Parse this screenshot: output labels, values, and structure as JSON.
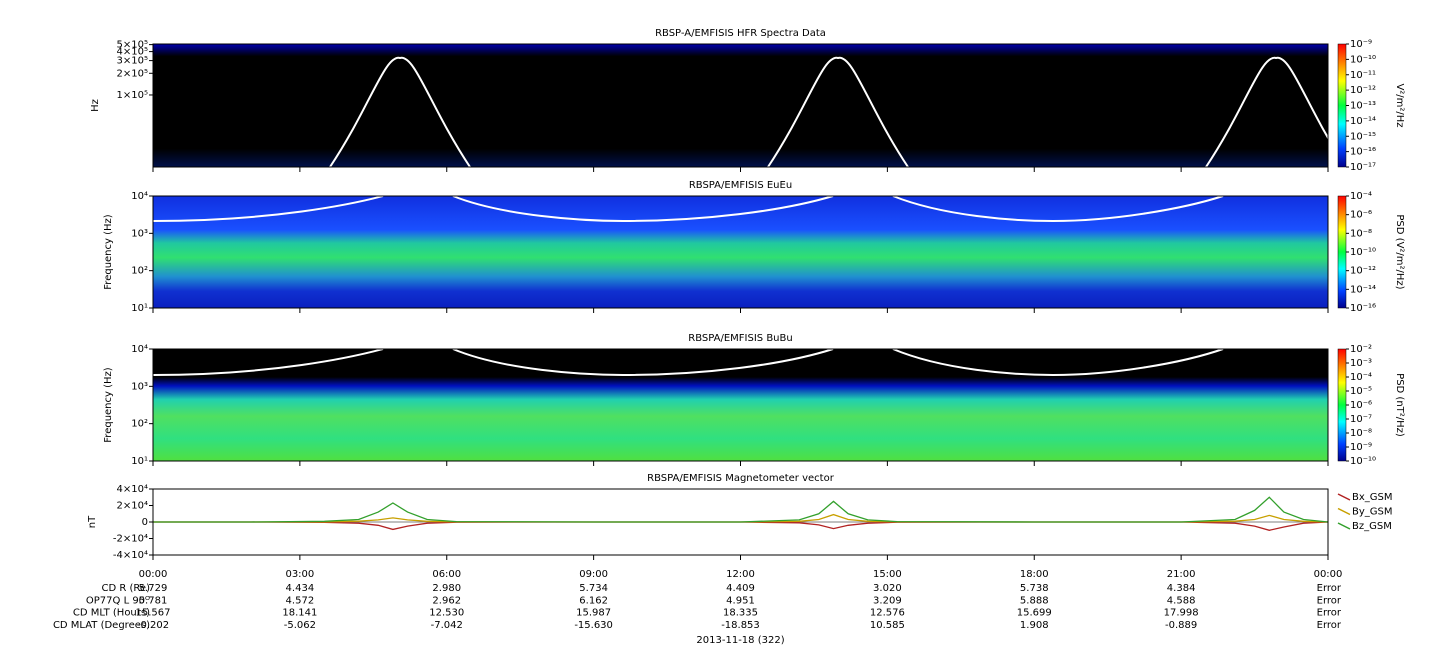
{
  "chart_data": [
    {
      "type": "spectrogram",
      "title": "RBSP-A/EMFISIS  HFR Spectra Data",
      "y_label": "Hz",
      "log_y": true,
      "ylim": [
        10000,
        510000
      ],
      "yticks": [
        {
          "value": 100000,
          "label": "1×10⁵"
        },
        {
          "value": 200000,
          "label": "2×10⁵"
        },
        {
          "value": 300000,
          "label": "3×10⁵"
        },
        {
          "value": 400000,
          "label": "4×10⁵"
        },
        {
          "value": 500000,
          "label": "5×10⁵"
        }
      ],
      "colorbar": {
        "label": "V²/m²/Hz",
        "log": true,
        "lim": [
          1e-17,
          1e-09
        ],
        "ticks": [
          {
            "value": 1e-09,
            "label": "10⁻⁹"
          },
          {
            "value": 1e-10,
            "label": "10⁻¹⁰"
          },
          {
            "value": 1e-11,
            "label": "10⁻¹¹"
          },
          {
            "value": 1e-12,
            "label": "10⁻¹²"
          },
          {
            "value": 1e-13,
            "label": "10⁻¹³"
          },
          {
            "value": 1e-14,
            "label": "10⁻¹⁴"
          },
          {
            "value": 1e-15,
            "label": "10⁻¹⁵"
          },
          {
            "value": 1e-16,
            "label": "10⁻¹⁶"
          },
          {
            "value": 1e-17,
            "label": "10⁻¹⁷"
          }
        ]
      }
    },
    {
      "type": "spectrogram",
      "title": "RBSPA/EMFISIS  EuEu",
      "y_label": "Frequency (Hz)",
      "log_y": true,
      "ylim": [
        10,
        10000
      ],
      "yticks": [
        {
          "value": 10,
          "label": "10¹"
        },
        {
          "value": 100,
          "label": "10²"
        },
        {
          "value": 1000,
          "label": "10³"
        },
        {
          "value": 10000,
          "label": "10⁴"
        }
      ],
      "colorbar": {
        "label": "PSD (V²/m²/Hz)",
        "log": true,
        "lim": [
          1e-16,
          0.0001
        ],
        "ticks": [
          {
            "value": 0.0001,
            "label": "10⁻⁴"
          },
          {
            "value": 1e-06,
            "label": "10⁻⁶"
          },
          {
            "value": 1e-08,
            "label": "10⁻⁸"
          },
          {
            "value": 1e-10,
            "label": "10⁻¹⁰"
          },
          {
            "value": 1e-12,
            "label": "10⁻¹²"
          },
          {
            "value": 1e-14,
            "label": "10⁻¹⁴"
          },
          {
            "value": 1e-16,
            "label": "10⁻¹⁶"
          }
        ]
      }
    },
    {
      "type": "spectrogram",
      "title": "RBSPA/EMFISIS  BuBu",
      "y_label": "Frequency (Hz)",
      "log_y": true,
      "ylim": [
        10,
        10000
      ],
      "yticks": [
        {
          "value": 10,
          "label": "10¹"
        },
        {
          "value": 100,
          "label": "10²"
        },
        {
          "value": 1000,
          "label": "10³"
        },
        {
          "value": 10000,
          "label": "10⁴"
        }
      ],
      "colorbar": {
        "label": "PSD (nT²/Hz)",
        "log": true,
        "lim": [
          1e-10,
          0.01
        ],
        "ticks": [
          {
            "value": 0.01,
            "label": "10⁻²"
          },
          {
            "value": 0.001,
            "label": "10⁻³"
          },
          {
            "value": 0.0001,
            "label": "10⁻⁴"
          },
          {
            "value": 1e-05,
            "label": "10⁻⁵"
          },
          {
            "value": 1e-06,
            "label": "10⁻⁶"
          },
          {
            "value": 1e-07,
            "label": "10⁻⁷"
          },
          {
            "value": 1e-08,
            "label": "10⁻⁸"
          },
          {
            "value": 1e-09,
            "label": "10⁻⁹"
          },
          {
            "value": 1e-10,
            "label": "10⁻¹⁰"
          }
        ]
      }
    },
    {
      "type": "line",
      "title": "RBSPA/EMFISIS  Magnetometer vector",
      "y_label": "nT",
      "ylim": [
        -40000,
        40000
      ],
      "yticks": [
        {
          "value": -40000,
          "label": "-4×10⁴"
        },
        {
          "value": -20000,
          "label": "-2×10⁴"
        },
        0,
        {
          "value": 20000,
          "label": "2×10⁴"
        },
        {
          "value": 40000,
          "label": "4×10⁴"
        }
      ],
      "xlim": [
        0,
        24
      ],
      "xticks": [
        {
          "value": 0,
          "label": "00:00"
        },
        {
          "value": 3,
          "label": "03:00"
        },
        {
          "value": 6,
          "label": "06:00"
        },
        {
          "value": 9,
          "label": "09:00"
        },
        {
          "value": 12,
          "label": "12:00"
        },
        {
          "value": 15,
          "label": "15:00"
        },
        {
          "value": 18,
          "label": "18:00"
        },
        {
          "value": 21,
          "label": "21:00"
        },
        {
          "value": 24,
          "label": "00:00"
        }
      ],
      "x": [
        0,
        2,
        3.5,
        4.2,
        4.6,
        4.9,
        5.2,
        5.6,
        6.2,
        9,
        12,
        13.2,
        13.6,
        13.9,
        14.2,
        14.6,
        15.2,
        18,
        21,
        22.1,
        22.5,
        22.8,
        23.1,
        23.5,
        24
      ],
      "series": [
        {
          "name": "Bx_GSM",
          "color": "#b22222",
          "values": [
            0,
            0,
            -500,
            -1500,
            -4000,
            -9000,
            -5000,
            -1500,
            -300,
            0,
            0,
            -1000,
            -3500,
            -8000,
            -4000,
            -1500,
            -300,
            0,
            0,
            -1500,
            -5000,
            -10000,
            -6000,
            -1500,
            0
          ]
        },
        {
          "name": "By_GSM",
          "color": "#c8a000",
          "values": [
            0,
            0,
            300,
            1000,
            2500,
            5000,
            2500,
            800,
            200,
            0,
            0,
            800,
            3000,
            9000,
            3000,
            800,
            200,
            0,
            0,
            1000,
            3000,
            8000,
            3000,
            800,
            0
          ]
        },
        {
          "name": "Bz_GSM",
          "color": "#33a02c",
          "values": [
            0,
            0,
            800,
            3000,
            12000,
            23000,
            12000,
            3000,
            500,
            0,
            0,
            2500,
            10000,
            25000,
            10000,
            2500,
            500,
            0,
            0,
            3000,
            14000,
            30000,
            12000,
            3000,
            0
          ]
        }
      ]
    }
  ],
  "ephemeris": {
    "rows": [
      {
        "label": "CD R (Re)",
        "values": [
          "5.729",
          "4.434",
          "2.980",
          "5.734",
          "4.409",
          "3.020",
          "5.738",
          "4.384",
          "Error"
        ]
      },
      {
        "label": "OP77Q L 90ᴼ",
        "values": [
          "5.781",
          "4.572",
          "2.962",
          "6.162",
          "4.951",
          "3.209",
          "5.888",
          "4.588",
          "Error"
        ]
      },
      {
        "label": "CD MLT (Hours)",
        "values": [
          "15.567",
          "18.141",
          "12.530",
          "15.987",
          "18.335",
          "12.576",
          "15.699",
          "17.998",
          "Error"
        ]
      },
      {
        "label": "CD MLAT (Degrees)",
        "values": [
          "-0.202",
          "-5.062",
          "-7.042",
          "-15.630",
          "-18.853",
          "10.585",
          "1.908",
          "-0.889",
          "Error"
        ]
      }
    ],
    "date": "2013-11-18 (322)"
  }
}
